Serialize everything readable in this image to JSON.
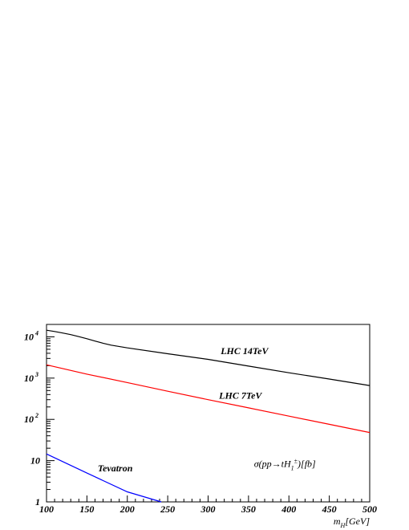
{
  "chart_data": {
    "type": "line",
    "title": "",
    "xlabel": "m_H [GeV]",
    "xlabel_parts": {
      "main": "m",
      "sub": "H",
      "unit": "[GeV]"
    },
    "ylabel": "",
    "xlim": [
      100,
      500
    ],
    "ylim": [
      1,
      20000
    ],
    "yscale": "log",
    "grid": false,
    "x_ticks": [
      100,
      150,
      200,
      250,
      300,
      350,
      400,
      450,
      500
    ],
    "x_tick_labels": [
      "100",
      "150",
      "200",
      "250",
      "300",
      "350",
      "400",
      "450",
      "500"
    ],
    "y_ticks": [
      {
        "value": 1,
        "label": "1",
        "exp": ""
      },
      {
        "value": 10,
        "label": "10",
        "exp": ""
      },
      {
        "value": 100,
        "label": "10",
        "exp": "2"
      },
      {
        "value": 1000,
        "label": "10",
        "exp": "3"
      },
      {
        "value": 10000,
        "label": "10",
        "exp": "4"
      }
    ],
    "annotation": {
      "text": "σ(pp→tH₁±)[fb]",
      "prefix": "σ(pp→tH",
      "sub": "1",
      "sup": "±",
      "suffix": ")[fb]",
      "x": 395,
      "y": 7
    },
    "series": [
      {
        "name": "LHC 14TeV",
        "color": "#000000",
        "label_x": 345,
        "label_y": 3800,
        "x": [
          100,
          110,
          120,
          130,
          140,
          150,
          160,
          170,
          180,
          200,
          250,
          300,
          350,
          400,
          450,
          500
        ],
        "values": [
          14500,
          13500,
          12400,
          11300,
          10100,
          9000,
          7900,
          7000,
          6300,
          5400,
          3900,
          2850,
          1950,
          1350,
          950,
          660
        ]
      },
      {
        "name": "LHC 7TeV",
        "color": "#ff0000",
        "label_x": 340,
        "label_y": 320,
        "x": [
          100,
          150,
          200,
          250,
          300,
          350,
          400,
          450,
          500
        ],
        "values": [
          2100,
          1250,
          780,
          480,
          300,
          190,
          120,
          76,
          48
        ]
      },
      {
        "name": "Tevatron",
        "color": "#0000ff",
        "label_x": 185,
        "label_y": 5.5,
        "x": [
          100,
          150,
          200,
          242
        ],
        "values": [
          14.5,
          5.0,
          1.75,
          1.0
        ]
      }
    ]
  }
}
